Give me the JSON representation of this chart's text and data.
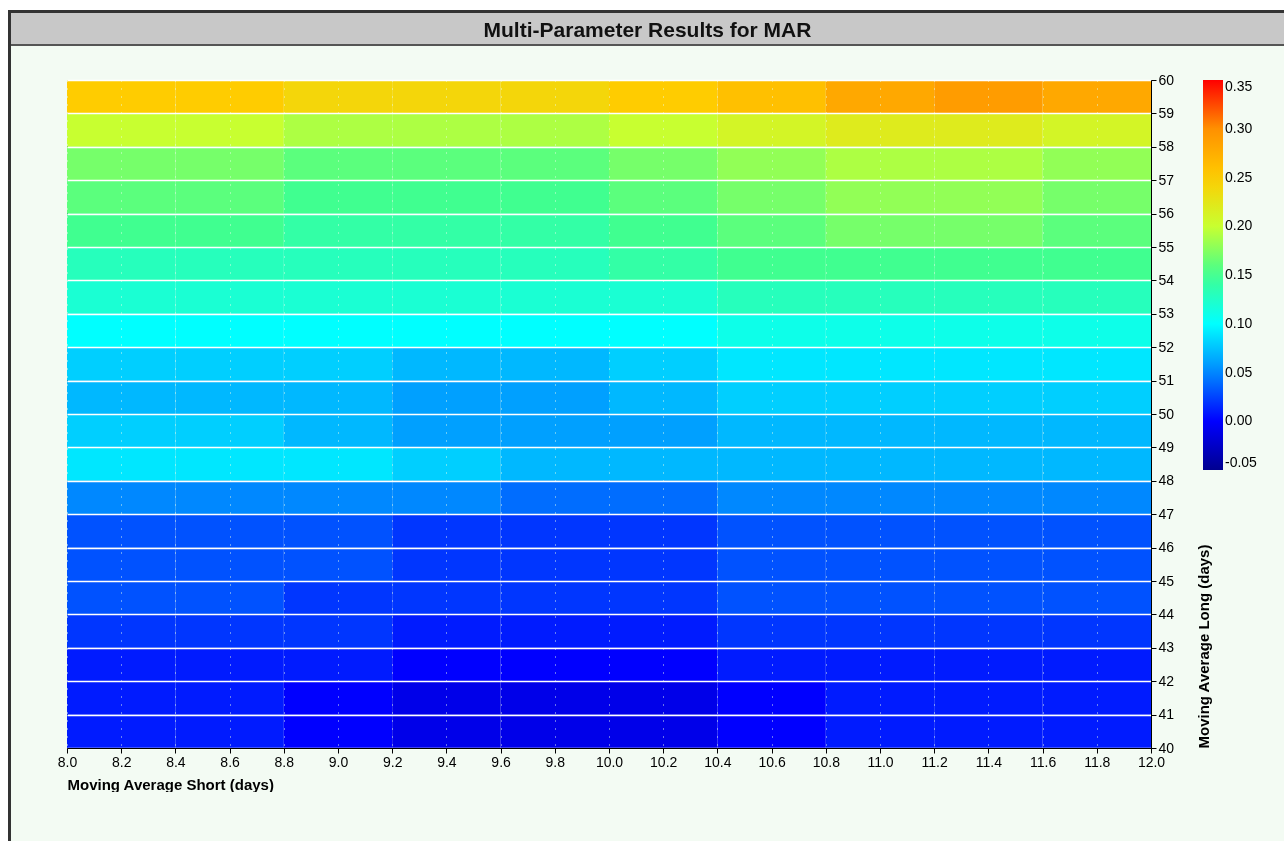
{
  "chart_data": {
    "type": "heatmap",
    "title": "Multi-Parameter Results for MAR",
    "xlabel": "Moving Average Short (days)",
    "ylabel": "Moving Average Long (days)",
    "x": [
      8.2,
      8.6,
      9.0,
      9.4,
      9.8,
      10.2,
      10.6,
      11.0,
      11.4,
      11.8
    ],
    "y": [
      59.5,
      58.5,
      57.5,
      56.5,
      55.5,
      54.5,
      53.5,
      52.5,
      51.5,
      50.5,
      49.5,
      48.5,
      47.5,
      46.5,
      45.5,
      44.5,
      43.5,
      42.5,
      41.5,
      40.5
    ],
    "cells": [
      [
        0.25,
        0.25,
        0.24,
        0.24,
        0.24,
        0.25,
        0.26,
        0.28,
        0.29,
        0.28
      ],
      [
        0.2,
        0.2,
        0.19,
        0.19,
        0.19,
        0.2,
        0.21,
        0.22,
        0.22,
        0.21
      ],
      [
        0.17,
        0.17,
        0.16,
        0.16,
        0.16,
        0.17,
        0.18,
        0.19,
        0.19,
        0.18
      ],
      [
        0.16,
        0.16,
        0.15,
        0.15,
        0.15,
        0.16,
        0.17,
        0.18,
        0.18,
        0.17
      ],
      [
        0.15,
        0.15,
        0.14,
        0.14,
        0.14,
        0.15,
        0.16,
        0.17,
        0.17,
        0.16
      ],
      [
        0.13,
        0.13,
        0.13,
        0.13,
        0.13,
        0.14,
        0.15,
        0.15,
        0.15,
        0.15
      ],
      [
        0.12,
        0.12,
        0.12,
        0.12,
        0.12,
        0.12,
        0.13,
        0.13,
        0.13,
        0.13
      ],
      [
        0.1,
        0.1,
        0.1,
        0.1,
        0.1,
        0.1,
        0.11,
        0.11,
        0.11,
        0.11
      ],
      [
        0.08,
        0.08,
        0.08,
        0.07,
        0.07,
        0.08,
        0.09,
        0.09,
        0.09,
        0.09
      ],
      [
        0.07,
        0.07,
        0.07,
        0.06,
        0.06,
        0.07,
        0.08,
        0.08,
        0.08,
        0.08
      ],
      [
        0.08,
        0.08,
        0.07,
        0.06,
        0.06,
        0.06,
        0.07,
        0.07,
        0.07,
        0.07
      ],
      [
        0.09,
        0.09,
        0.09,
        0.08,
        0.07,
        0.07,
        0.07,
        0.07,
        0.07,
        0.07
      ],
      [
        0.05,
        0.05,
        0.05,
        0.05,
        0.04,
        0.04,
        0.05,
        0.05,
        0.05,
        0.05
      ],
      [
        0.03,
        0.03,
        0.03,
        0.02,
        0.02,
        0.02,
        0.03,
        0.03,
        0.03,
        0.03
      ],
      [
        0.03,
        0.03,
        0.03,
        0.02,
        0.02,
        0.02,
        0.03,
        0.03,
        0.03,
        0.03
      ],
      [
        0.03,
        0.03,
        0.02,
        0.02,
        0.02,
        0.02,
        0.03,
        0.03,
        0.03,
        0.03
      ],
      [
        0.02,
        0.02,
        0.02,
        0.01,
        0.01,
        0.01,
        0.02,
        0.02,
        0.02,
        0.02
      ],
      [
        0.01,
        0.01,
        0.01,
        0.0,
        0.0,
        0.0,
        0.01,
        0.01,
        0.01,
        0.01
      ],
      [
        0.01,
        0.01,
        0.0,
        -0.01,
        -0.01,
        -0.01,
        0.0,
        0.01,
        0.01,
        0.01
      ],
      [
        0.01,
        0.01,
        0.0,
        -0.01,
        -0.01,
        -0.01,
        0.0,
        0.01,
        0.01,
        0.01
      ]
    ],
    "xlim": [
      8.0,
      12.0
    ],
    "xticks": [
      {
        "value": 8,
        "label": "8.0"
      },
      {
        "value": 8.2,
        "label": "8.2"
      },
      {
        "value": 8.4,
        "label": "8.4"
      },
      {
        "value": 8.6,
        "label": "8.6"
      },
      {
        "value": 8.8,
        "label": "8.8"
      },
      {
        "value": 9,
        "label": "9.0"
      },
      {
        "value": 9.2,
        "label": "9.2"
      },
      {
        "value": 9.4,
        "label": "9.4"
      },
      {
        "value": 9.6,
        "label": "9.6"
      },
      {
        "value": 9.8,
        "label": "9.8"
      },
      {
        "value": 10,
        "label": "10.0"
      },
      {
        "value": 10.2,
        "label": "10.2"
      },
      {
        "value": 10.4,
        "label": "10.4"
      },
      {
        "value": 10.6,
        "label": "10.6"
      },
      {
        "value": 10.8,
        "label": "10.8"
      },
      {
        "value": 11,
        "label": "11.0"
      },
      {
        "value": 11.2,
        "label": "11.2"
      },
      {
        "value": 11.4,
        "label": "11.4"
      },
      {
        "value": 11.6,
        "label": "11.6"
      },
      {
        "value": 11.8,
        "label": "11.8"
      },
      {
        "value": 12,
        "label": "12.0"
      }
    ],
    "ylim": [
      40,
      60
    ],
    "yticks": [
      40,
      41,
      42,
      43,
      44,
      45,
      46,
      47,
      48,
      49,
      50,
      51,
      52,
      53,
      54,
      55,
      56,
      57,
      58,
      59,
      60
    ],
    "clim": [
      -0.05,
      0.35
    ],
    "cticks": [
      {
        "value": -0.05,
        "label": "-0.05"
      },
      {
        "value": 0,
        "label": "0.00"
      },
      {
        "value": 0.05,
        "label": "0.05"
      },
      {
        "value": 0.1,
        "label": "0.10"
      },
      {
        "value": 0.15,
        "label": "0.15"
      },
      {
        "value": 0.2,
        "label": "0.20"
      },
      {
        "value": 0.25,
        "label": "0.25"
      },
      {
        "value": 0.3,
        "label": "0.30"
      },
      {
        "value": 0.35,
        "label": "0.35"
      }
    ],
    "grid": true
  }
}
